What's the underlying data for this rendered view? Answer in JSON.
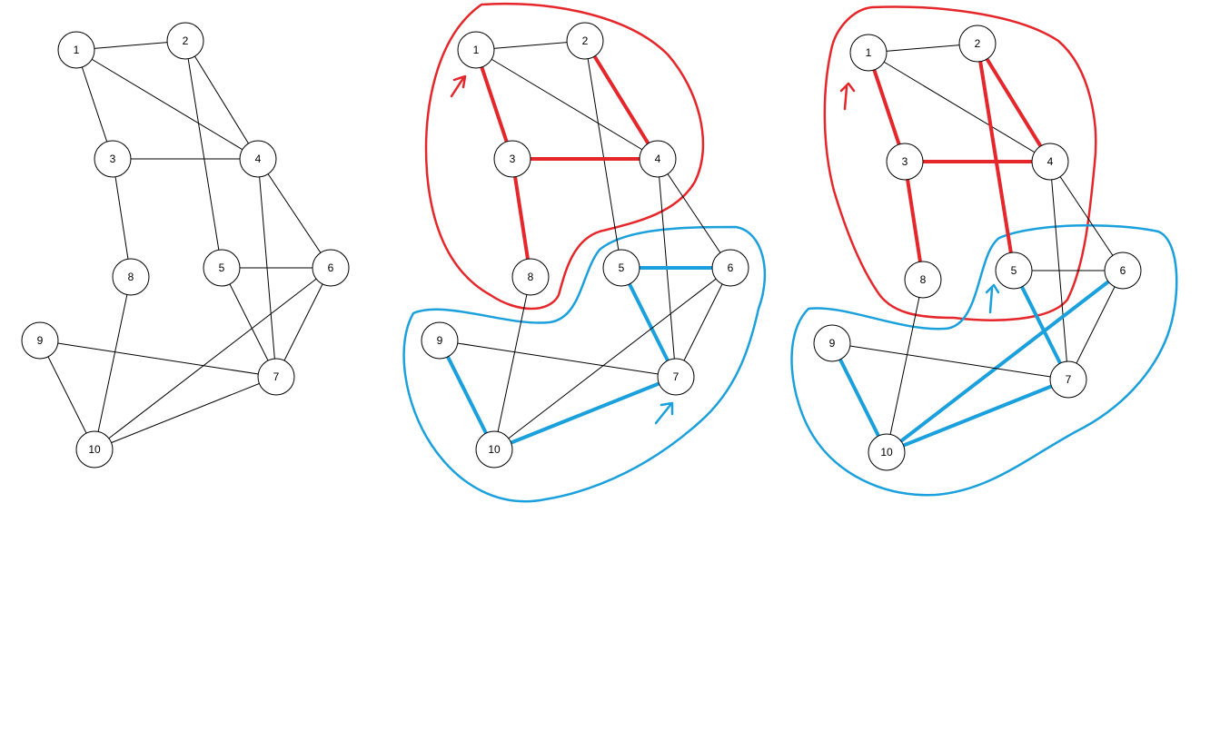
{
  "colors": {
    "red": "#e5262a",
    "blue": "#1aa0dc",
    "black": "#000000"
  },
  "graphs": [
    {
      "name": "original-graph",
      "nodes": [
        "1",
        "2",
        "3",
        "4",
        "5",
        "6",
        "7",
        "8",
        "9",
        "10"
      ],
      "edges": [
        [
          "1",
          "2"
        ],
        [
          "1",
          "3"
        ],
        [
          "1",
          "4"
        ],
        [
          "2",
          "4"
        ],
        [
          "2",
          "5"
        ],
        [
          "3",
          "4"
        ],
        [
          "3",
          "8"
        ],
        [
          "4",
          "6"
        ],
        [
          "4",
          "7"
        ],
        [
          "5",
          "6"
        ],
        [
          "5",
          "7"
        ],
        [
          "6",
          "7"
        ],
        [
          "6",
          "10"
        ],
        [
          "7",
          "9"
        ],
        [
          "7",
          "10"
        ],
        [
          "8",
          "10"
        ],
        [
          "9",
          "10"
        ]
      ],
      "highlighted": []
    },
    {
      "name": "partition-a",
      "nodes": [
        "1",
        "2",
        "3",
        "4",
        "5",
        "6",
        "7",
        "8",
        "9",
        "10"
      ],
      "edges": [
        [
          "1",
          "2"
        ],
        [
          "1",
          "3"
        ],
        [
          "1",
          "4"
        ],
        [
          "2",
          "4"
        ],
        [
          "2",
          "5"
        ],
        [
          "3",
          "4"
        ],
        [
          "3",
          "8"
        ],
        [
          "4",
          "6"
        ],
        [
          "4",
          "7"
        ],
        [
          "5",
          "6"
        ],
        [
          "5",
          "7"
        ],
        [
          "6",
          "7"
        ],
        [
          "6",
          "10"
        ],
        [
          "7",
          "9"
        ],
        [
          "7",
          "10"
        ],
        [
          "8",
          "10"
        ],
        [
          "9",
          "10"
        ]
      ],
      "highlighted": [
        {
          "edge": [
            "1",
            "3"
          ],
          "color": "red"
        },
        {
          "edge": [
            "2",
            "4"
          ],
          "color": "red"
        },
        {
          "edge": [
            "3",
            "4"
          ],
          "color": "red"
        },
        {
          "edge": [
            "3",
            "8"
          ],
          "color": "red"
        },
        {
          "edge": [
            "5",
            "6"
          ],
          "color": "blue"
        },
        {
          "edge": [
            "5",
            "7"
          ],
          "color": "blue"
        },
        {
          "edge": [
            "9",
            "10"
          ],
          "color": "blue"
        },
        {
          "edge": [
            "7",
            "10"
          ],
          "color": "blue"
        }
      ],
      "regions": [
        {
          "color": "red",
          "nodes": [
            "1",
            "2",
            "3",
            "4",
            "8"
          ]
        },
        {
          "color": "blue",
          "nodes": [
            "5",
            "6",
            "7",
            "9",
            "10"
          ]
        }
      ]
    },
    {
      "name": "partition-b",
      "nodes": [
        "1",
        "2",
        "3",
        "4",
        "5",
        "6",
        "7",
        "8",
        "9",
        "10"
      ],
      "edges": [
        [
          "1",
          "2"
        ],
        [
          "1",
          "3"
        ],
        [
          "1",
          "4"
        ],
        [
          "2",
          "4"
        ],
        [
          "2",
          "5"
        ],
        [
          "3",
          "4"
        ],
        [
          "3",
          "8"
        ],
        [
          "4",
          "6"
        ],
        [
          "4",
          "7"
        ],
        [
          "5",
          "6"
        ],
        [
          "5",
          "7"
        ],
        [
          "6",
          "7"
        ],
        [
          "6",
          "10"
        ],
        [
          "7",
          "9"
        ],
        [
          "7",
          "10"
        ],
        [
          "8",
          "10"
        ],
        [
          "9",
          "10"
        ]
      ],
      "highlighted": [
        {
          "edge": [
            "1",
            "3"
          ],
          "color": "red"
        },
        {
          "edge": [
            "2",
            "4"
          ],
          "color": "red"
        },
        {
          "edge": [
            "2",
            "5"
          ],
          "color": "red"
        },
        {
          "edge": [
            "3",
            "4"
          ],
          "color": "red"
        },
        {
          "edge": [
            "3",
            "8"
          ],
          "color": "red"
        },
        {
          "edge": [
            "5",
            "7"
          ],
          "color": "blue"
        },
        {
          "edge": [
            "6",
            "10"
          ],
          "color": "blue"
        },
        {
          "edge": [
            "9",
            "10"
          ],
          "color": "blue"
        },
        {
          "edge": [
            "7",
            "10"
          ],
          "color": "blue"
        }
      ],
      "regions": [
        {
          "color": "red",
          "nodes": [
            "1",
            "2",
            "3",
            "4",
            "8"
          ]
        },
        {
          "color": "blue",
          "nodes": [
            "5",
            "6",
            "7",
            "9",
            "10"
          ]
        }
      ]
    }
  ]
}
